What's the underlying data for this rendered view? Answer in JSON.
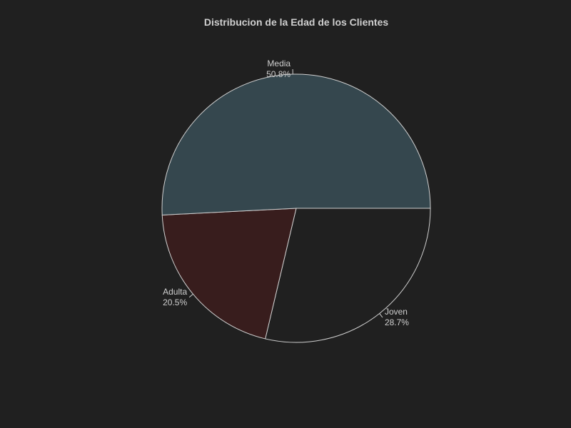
{
  "chart_data": {
    "type": "pie",
    "title": "Distribucion de la Edad de los Clientes",
    "slices": [
      {
        "label": "Joven",
        "percent_label": "28.7%",
        "value": 28.7,
        "color": "#202020"
      },
      {
        "label": "Adulta",
        "percent_label": "20.5%",
        "value": 20.5,
        "color": "#381d1d"
      },
      {
        "label": "Media",
        "percent_label": "50.8%",
        "value": 50.8,
        "color": "#35474e"
      }
    ],
    "start_angle_deg": 0,
    "direction": "counterclockwise",
    "colors": {
      "background": "#202020",
      "text": "#cfcfcf",
      "outline": "#cfcfcf"
    }
  }
}
